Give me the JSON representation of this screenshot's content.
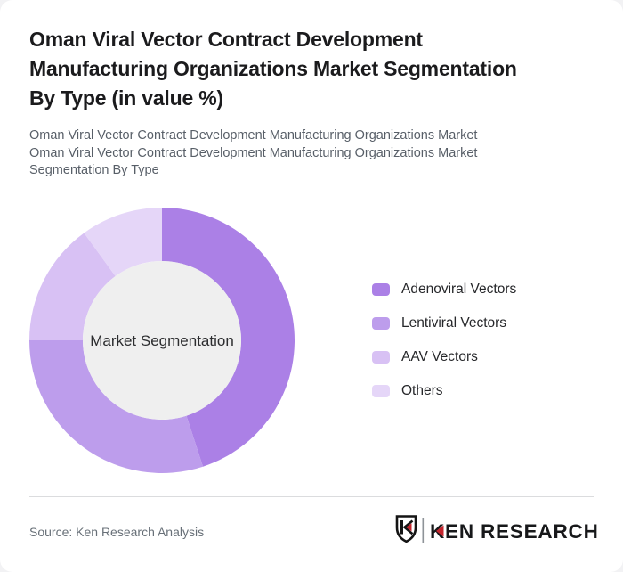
{
  "header": {
    "title": "Oman Viral Vector Contract Development\nManufacturing Organizations Market Segmentation\nBy Type (in value %)",
    "subtitle_lines": [
      "Oman Viral Vector Contract Development Manufacturing Organizations Market",
      "Oman Viral Vector Contract Development Manufacturing Organizations Market Segmentation By Type"
    ]
  },
  "chart_data": {
    "type": "pie",
    "variant": "donut",
    "title": "Oman Viral Vector Contract Development Manufacturing Organizations Market Segmentation By Type (in value %)",
    "categories": [
      "Adenoviral Vectors",
      "Lentiviral Vectors",
      "AAV Vectors",
      "Others"
    ],
    "values": [
      45,
      30,
      15,
      10
    ],
    "unit": "%",
    "colors": [
      "#ab80e6",
      "#bd9dec",
      "#d8c1f4",
      "#e5d6f8"
    ],
    "center_label": "Market Segmentation",
    "inner_circle_color": "#efefef",
    "inner_radius_ratio": 0.6,
    "start_angle_deg": 0,
    "direction": "clockwise",
    "legend_position": "right",
    "data_labels": "none"
  },
  "footer": {
    "source": "Source: Ken Research Analysis",
    "logo_text": "KEN RESEARCH",
    "logo_red": "#c4252d",
    "logo_black": "#141414"
  }
}
